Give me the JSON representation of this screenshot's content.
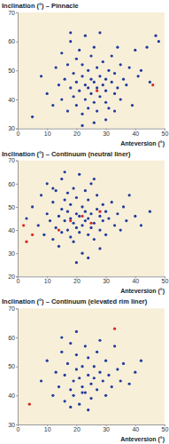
{
  "chart_data": [
    {
      "type": "scatter",
      "title": "Inclination (°) – Pinnacle",
      "x_label": "Anteversion (°)",
      "xlim": [
        0,
        50
      ],
      "xticks": [
        0,
        10,
        20,
        30,
        40,
        50
      ],
      "ylim": [
        30,
        70
      ],
      "yticks": [
        30,
        40,
        50,
        60,
        70
      ],
      "series": [
        {
          "color": "#1f3b9c",
          "marker": "circle",
          "x": [
            5,
            8,
            10,
            12,
            13,
            14,
            15,
            15,
            16,
            17,
            17,
            18,
            18,
            19,
            19,
            20,
            20,
            20,
            21,
            21,
            22,
            22,
            22,
            23,
            23,
            23,
            24,
            24,
            24,
            25,
            25,
            25,
            26,
            26,
            26,
            27,
            27,
            27,
            28,
            28,
            28,
            29,
            29,
            30,
            30,
            30,
            31,
            31,
            32,
            32,
            33,
            33,
            34,
            34,
            35,
            35,
            36,
            37,
            38,
            39,
            40,
            41,
            42,
            44,
            45,
            47,
            48,
            22,
            26,
            30,
            18,
            33
          ],
          "values": [
            34,
            48,
            42,
            38,
            51,
            45,
            40,
            56,
            47,
            36,
            52,
            44,
            60,
            41,
            49,
            38,
            46,
            54,
            43,
            57,
            35,
            48,
            52,
            40,
            45,
            62,
            37,
            50,
            44,
            42,
            47,
            55,
            39,
            46,
            58,
            36,
            44,
            51,
            41,
            48,
            63,
            45,
            53,
            39,
            47,
            43,
            50,
            37,
            46,
            55,
            42,
            49,
            44,
            58,
            40,
            52,
            47,
            45,
            51,
            38,
            57,
            48,
            50,
            58,
            46,
            62,
            60,
            31,
            32,
            33,
            63,
            36
          ]
        },
        {
          "color": "#d62828",
          "marker": "circle",
          "x": [
            27,
            46
          ],
          "values": [
            43,
            45
          ]
        }
      ]
    },
    {
      "type": "scatter",
      "title": "Inclination (°) – Continuum (neutral liner)",
      "x_label": "Anteversion (°)",
      "xlim": [
        0,
        50
      ],
      "xticks": [
        0,
        10,
        20,
        30,
        40,
        50
      ],
      "ylim": [
        20,
        70
      ],
      "yticks": [
        20,
        30,
        40,
        50,
        60,
        70
      ],
      "series": [
        {
          "color": "#1f3b9c",
          "marker": "circle",
          "x": [
            3,
            5,
            7,
            8,
            9,
            10,
            10,
            11,
            12,
            12,
            13,
            13,
            14,
            14,
            15,
            15,
            15,
            16,
            16,
            17,
            17,
            17,
            18,
            18,
            18,
            19,
            19,
            19,
            20,
            20,
            20,
            21,
            21,
            21,
            22,
            22,
            22,
            23,
            23,
            23,
            24,
            24,
            24,
            25,
            25,
            25,
            26,
            26,
            27,
            27,
            28,
            28,
            29,
            29,
            30,
            30,
            31,
            32,
            33,
            34,
            35,
            36,
            37,
            38,
            40,
            42,
            45,
            20,
            24,
            16,
            28,
            12,
            26
          ],
          "values": [
            45,
            50,
            42,
            55,
            38,
            47,
            60,
            44,
            36,
            52,
            41,
            57,
            46,
            33,
            49,
            39,
            62,
            44,
            53,
            40,
            48,
            56,
            37,
            45,
            51,
            43,
            58,
            35,
            41,
            47,
            54,
            39,
            46,
            64,
            42,
            50,
            30,
            44,
            48,
            57,
            38,
            45,
            53,
            41,
            47,
            60,
            43,
            36,
            49,
            55,
            40,
            46,
            44,
            51,
            38,
            48,
            45,
            52,
            42,
            47,
            40,
            50,
            44,
            55,
            46,
            42,
            48,
            26,
            28,
            65,
            32,
            58,
            62
          ]
        },
        {
          "color": "#d62828",
          "marker": "circle",
          "x": [
            2,
            5,
            3,
            14,
            22,
            25,
            28,
            18
          ],
          "values": [
            42,
            38,
            35,
            40,
            46,
            43,
            48,
            44
          ]
        }
      ]
    },
    {
      "type": "scatter",
      "title": "Inclination (°) – Continuum (elevated rim liner)",
      "x_label": "Anteversion (°)",
      "xlim": [
        0,
        50
      ],
      "xticks": [
        0,
        10,
        20,
        30,
        40,
        50
      ],
      "ylim": [
        30,
        70
      ],
      "yticks": [
        30,
        40,
        50,
        60,
        70
      ],
      "series": [
        {
          "color": "#1f3b9c",
          "marker": "circle",
          "x": [
            8,
            10,
            12,
            13,
            14,
            15,
            16,
            16,
            17,
            18,
            18,
            19,
            19,
            20,
            20,
            21,
            21,
            22,
            22,
            23,
            23,
            24,
            24,
            25,
            25,
            26,
            26,
            27,
            27,
            28,
            29,
            30,
            30,
            31,
            32,
            33,
            34,
            35,
            36,
            38,
            40,
            42,
            15,
            20,
            24,
            28,
            18,
            22
          ],
          "values": [
            45,
            52,
            40,
            48,
            43,
            55,
            38,
            47,
            51,
            42,
            58,
            45,
            40,
            49,
            54,
            37,
            46,
            50,
            43,
            57,
            41,
            47,
            53,
            44,
            39,
            50,
            46,
            55,
            42,
            48,
            45,
            52,
            40,
            47,
            43,
            57,
            49,
            45,
            51,
            44,
            48,
            52,
            60,
            62,
            35,
            59,
            36,
            41
          ]
        },
        {
          "color": "#d62828",
          "marker": "circle",
          "x": [
            4,
            33
          ],
          "values": [
            37,
            63
          ]
        }
      ]
    }
  ]
}
